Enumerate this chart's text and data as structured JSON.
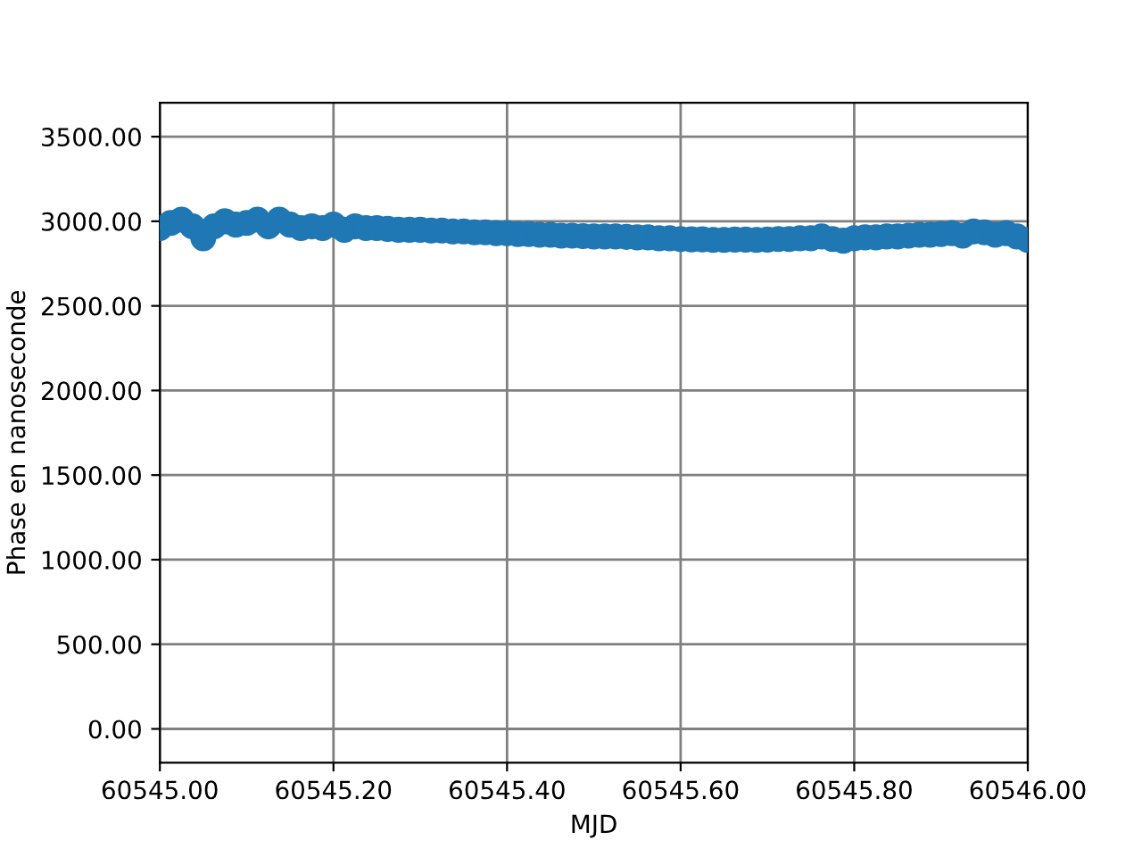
{
  "chart_data": {
    "type": "scatter",
    "xlabel": "MJD",
    "ylabel": "Phase en nanoseconde",
    "x": [
      60545.0,
      60545.0125,
      60545.025,
      60545.0375,
      60545.05,
      60545.0625,
      60545.075,
      60545.0875,
      60545.1,
      60545.1125,
      60545.125,
      60545.1375,
      60545.15,
      60545.1625,
      60545.175,
      60545.1875,
      60545.2,
      60545.2125,
      60545.225,
      60545.2375,
      60545.25,
      60545.2625,
      60545.275,
      60545.2875,
      60545.3,
      60545.3125,
      60545.325,
      60545.3375,
      60545.35,
      60545.3625,
      60545.375,
      60545.3875,
      60545.4,
      60545.4125,
      60545.425,
      60545.4375,
      60545.45,
      60545.4625,
      60545.475,
      60545.4875,
      60545.5,
      60545.5125,
      60545.525,
      60545.5375,
      60545.55,
      60545.5625,
      60545.575,
      60545.5875,
      60545.6,
      60545.6125,
      60545.625,
      60545.6375,
      60545.65,
      60545.6625,
      60545.675,
      60545.6875,
      60545.7,
      60545.7125,
      60545.725,
      60545.7375,
      60545.75,
      60545.7625,
      60545.775,
      60545.7875,
      60545.8,
      60545.8125,
      60545.825,
      60545.8375,
      60545.85,
      60545.8625,
      60545.875,
      60545.8875,
      60545.9,
      60545.9125,
      60545.925,
      60545.9375,
      60545.95,
      60545.9625,
      60545.975,
      60545.9875,
      60546.0
    ],
    "values": [
      2960,
      2990,
      3010,
      2970,
      2900,
      2970,
      3000,
      2980,
      2990,
      3010,
      2970,
      3010,
      2980,
      2960,
      2970,
      2960,
      2980,
      2950,
      2970,
      2960,
      2960,
      2955,
      2950,
      2950,
      2950,
      2945,
      2945,
      2940,
      2940,
      2935,
      2935,
      2930,
      2930,
      2925,
      2925,
      2920,
      2920,
      2915,
      2915,
      2912,
      2910,
      2910,
      2910,
      2908,
      2905,
      2905,
      2900,
      2900,
      2895,
      2893,
      2893,
      2890,
      2890,
      2892,
      2892,
      2890,
      2892,
      2895,
      2895,
      2900,
      2900,
      2910,
      2895,
      2885,
      2900,
      2905,
      2905,
      2910,
      2910,
      2915,
      2920,
      2920,
      2925,
      2930,
      2915,
      2940,
      2935,
      2920,
      2930,
      2910,
      2890
    ],
    "color": "#1f77b4",
    "marker": "circle",
    "xlim": [
      60545.0,
      60546.0
    ],
    "xticks": [
      {
        "value": 60545.0,
        "label": "60545.00"
      },
      {
        "value": 60545.2,
        "label": "60545.20"
      },
      {
        "value": 60545.4,
        "label": "60545.40"
      },
      {
        "value": 60545.6,
        "label": "60545.60"
      },
      {
        "value": 60545.8,
        "label": "60545.80"
      },
      {
        "value": 60546.0,
        "label": "60546.00"
      }
    ],
    "ylim": [
      -200,
      3700
    ],
    "yticks": [
      {
        "value": 0,
        "label": "0.00"
      },
      {
        "value": 500,
        "label": "500.00"
      },
      {
        "value": 1000,
        "label": "1000.00"
      },
      {
        "value": 1500,
        "label": "1500.00"
      },
      {
        "value": 2000,
        "label": "2000.00"
      },
      {
        "value": 2500,
        "label": "2500.00"
      },
      {
        "value": 3000,
        "label": "3000.00"
      },
      {
        "value": 3500,
        "label": "3500.00"
      }
    ],
    "grid": true
  }
}
